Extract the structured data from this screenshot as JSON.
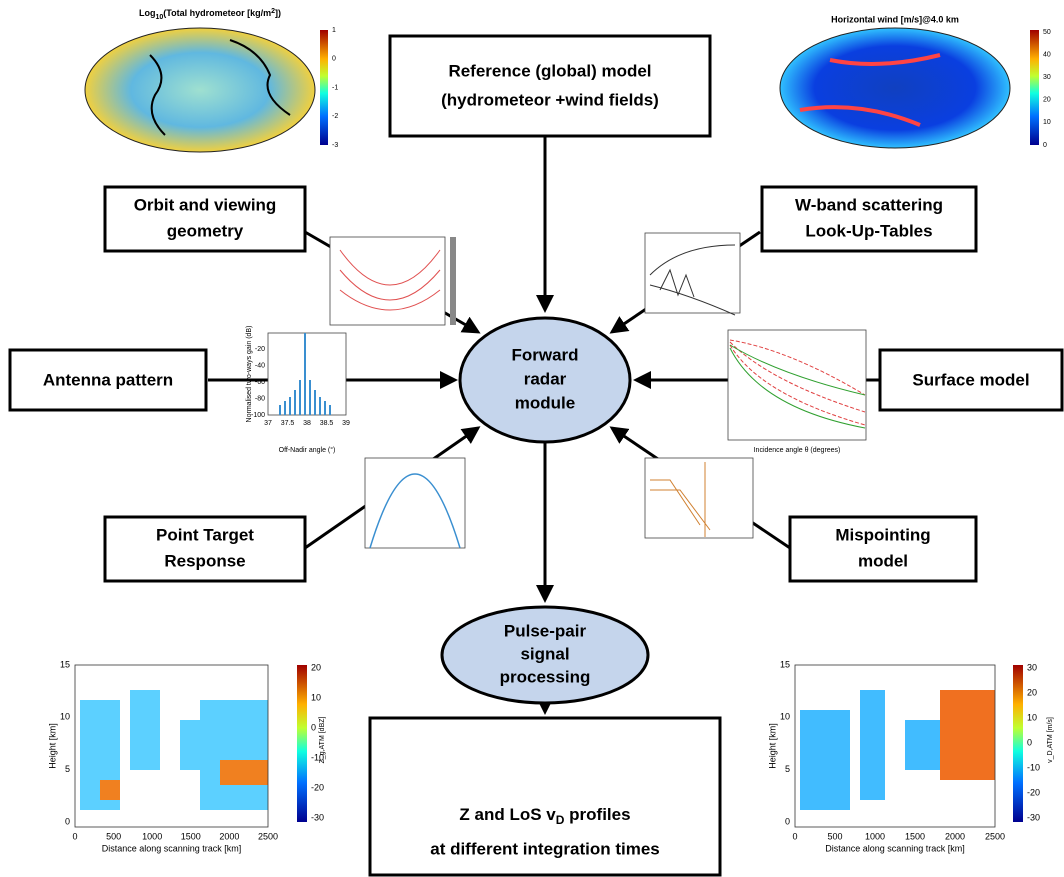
{
  "maps": [
    {
      "title_parts": [
        "Log",
        "10",
        "(Total hydrometeor [kg/m",
        "2",
        "])"
      ],
      "colorbar_ticks": [
        1,
        0,
        -1,
        -2,
        -3
      ]
    },
    {
      "title": "Horizontal wind [m/s]@4.0 km",
      "colorbar_ticks": [
        50,
        40,
        30,
        20,
        10,
        0
      ]
    }
  ],
  "nodes": [
    {
      "lines": [
        "Reference (global) model",
        "(hydrometeor +wind fields)"
      ]
    },
    {
      "lines": [
        "Orbit and viewing",
        "geometry"
      ]
    },
    {
      "lines": [
        "W-band scattering",
        "Look-Up-Tables"
      ]
    },
    {
      "lines": [
        "Antenna pattern"
      ]
    },
    {
      "lines": [
        "Surface model"
      ]
    },
    {
      "lines": [
        "Point Target",
        "Response"
      ]
    },
    {
      "lines": [
        "Mispointing",
        "model"
      ]
    },
    {
      "lines": [
        "Forward",
        "radar",
        "module"
      ]
    },
    {
      "lines": [
        "Pulse-pair",
        "signal",
        "processing"
      ]
    },
    {
      "line1_parts": [
        "Z and LoS v",
        "D",
        " profiles"
      ],
      "line2": "at different integration times"
    }
  ],
  "antenna_plot": {
    "y_label": "Normalised two-ways gain (dB)",
    "x_label": "Off-Nadir angle (°)",
    "yticks": [
      -20,
      -40,
      -60,
      -80,
      -100
    ],
    "xticks": [
      37,
      37.5,
      38,
      38.5,
      39
    ]
  },
  "surface_plot": {
    "x_label": "Incidence angle θ (degrees)"
  },
  "profile_plots": [
    {
      "y_label": "Height [km]",
      "x_label": "Distance along scanning track [km]",
      "yticks": [
        0,
        5,
        10,
        15
      ],
      "xticks": [
        0,
        500,
        1000,
        1500,
        2000,
        2500
      ],
      "colorbar_label": "Z_g,ATM [dBZ]",
      "colorbar_ticks": [
        20,
        10,
        0,
        -10,
        -20,
        -30
      ]
    },
    {
      "y_label": "Height [km]",
      "x_label": "Distance along scanning track [km]",
      "yticks": [
        0,
        5,
        10,
        15
      ],
      "xticks": [
        0,
        500,
        1000,
        1500,
        2000,
        2500
      ],
      "colorbar_label": "v_D,ATM [m/s]",
      "colorbar_ticks": [
        30,
        20,
        10,
        0,
        -10,
        -20,
        -30
      ]
    }
  ]
}
